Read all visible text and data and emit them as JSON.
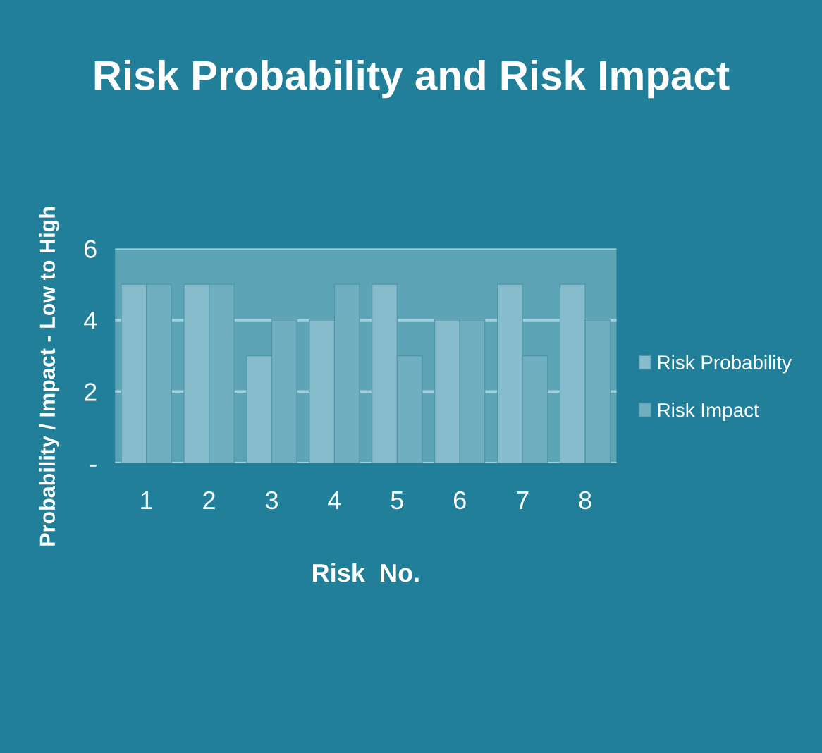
{
  "chart_data": {
    "type": "bar",
    "title": "Risk Probability and Risk Impact",
    "xlabel": "Risk  No.",
    "ylabel": "Probability / Impact - Low to High",
    "categories": [
      "1",
      "2",
      "3",
      "4",
      "5",
      "6",
      "7",
      "8"
    ],
    "series": [
      {
        "name": "Risk Probability",
        "color": "#86bccb",
        "values": [
          5,
          5,
          3,
          4,
          5,
          4,
          5,
          5
        ]
      },
      {
        "name": "Risk Impact",
        "color": "#6fafc0",
        "values": [
          5,
          5,
          4,
          5,
          3,
          4,
          3,
          4
        ]
      }
    ],
    "ylim": [
      0,
      6
    ],
    "yticks": [
      {
        "value": 0,
        "label": "-"
      },
      2,
      4,
      6
    ],
    "grid": "y",
    "legend": "right"
  }
}
